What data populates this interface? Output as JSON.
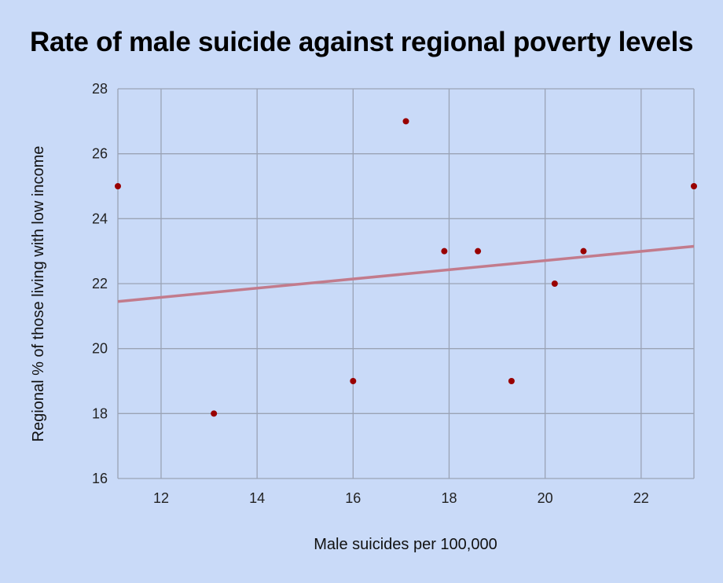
{
  "chart_data": {
    "type": "scatter",
    "title": "Rate of male suicide against regional poverty levels",
    "xlabel": "Male suicides per 100,000",
    "ylabel": "Regional % of those living with low income",
    "xlim": [
      11.1,
      23.1
    ],
    "ylim": [
      16,
      28
    ],
    "x_ticks": [
      12,
      14,
      16,
      18,
      20,
      22
    ],
    "y_ticks": [
      16,
      18,
      20,
      22,
      24,
      26,
      28
    ],
    "grid": true,
    "legend": "none",
    "point_color": "#990000",
    "trendline_color": "#c27b8c",
    "points": [
      {
        "x": 11.1,
        "y": 25
      },
      {
        "x": 13.1,
        "y": 18
      },
      {
        "x": 16.0,
        "y": 19
      },
      {
        "x": 17.1,
        "y": 27
      },
      {
        "x": 17.9,
        "y": 23
      },
      {
        "x": 18.6,
        "y": 23
      },
      {
        "x": 19.3,
        "y": 19
      },
      {
        "x": 20.2,
        "y": 22
      },
      {
        "x": 20.8,
        "y": 23
      },
      {
        "x": 23.1,
        "y": 25
      }
    ],
    "trendline": {
      "type": "linear",
      "start": {
        "x": 11.1,
        "y": 21.45
      },
      "end": {
        "x": 23.1,
        "y": 23.15
      }
    }
  }
}
